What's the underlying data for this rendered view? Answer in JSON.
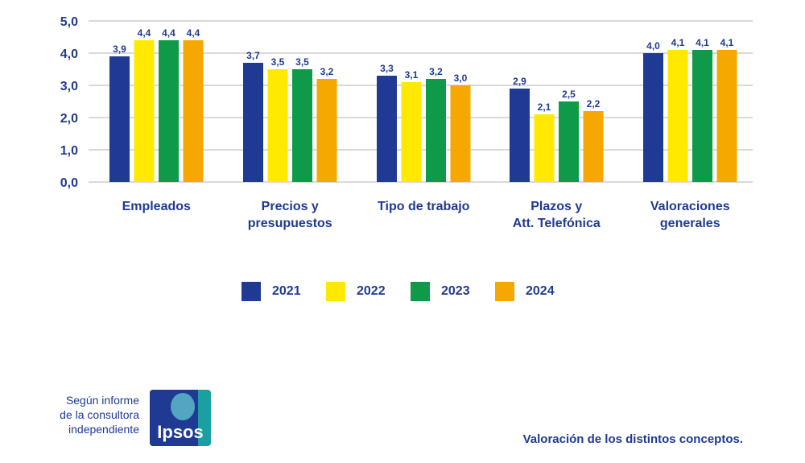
{
  "chart_data": {
    "type": "bar",
    "categories": [
      [
        "Empleados"
      ],
      [
        "Precios y",
        "presupuestos"
      ],
      [
        "Tipo de trabajo"
      ],
      [
        "Plazos y",
        "Att. Telefónica"
      ],
      [
        "Valoraciones",
        "generales"
      ]
    ],
    "series": [
      {
        "name": "2021",
        "color": "#1f3a93",
        "values": [
          3.9,
          3.7,
          3.3,
          2.9,
          4.0
        ],
        "labels": [
          "3,9",
          "3,7",
          "3,3",
          "2,9",
          "4,0"
        ]
      },
      {
        "name": "2022",
        "color": "#ffe900",
        "values": [
          4.4,
          3.5,
          3.1,
          2.1,
          4.1
        ],
        "labels": [
          "4,4",
          "3,5",
          "3,1",
          "2,1",
          "4,1"
        ]
      },
      {
        "name": "2023",
        "color": "#0e9a48",
        "values": [
          4.4,
          3.5,
          3.2,
          2.5,
          4.1
        ],
        "labels": [
          "4,4",
          "3,5",
          "3,2",
          "2,5",
          "4,1"
        ]
      },
      {
        "name": "2024",
        "color": "#f5a800",
        "values": [
          4.4,
          3.2,
          3.0,
          2.2,
          4.1
        ],
        "labels": [
          "4,4",
          "3,2",
          "3,0",
          "2,2",
          "4,1"
        ]
      }
    ],
    "ylim": [
      0,
      5
    ],
    "yticks": [
      0,
      1,
      2,
      3,
      4,
      5
    ],
    "ytick_labels": [
      "0,0",
      "1,0",
      "2,0",
      "3,0",
      "4,0",
      "5,0"
    ],
    "grid": true,
    "legend_position": "bottom",
    "title": "",
    "xlabel": "",
    "ylabel": ""
  },
  "footer": {
    "source_lines": [
      "Según informe",
      "de la consultora",
      "independiente"
    ],
    "logo_text": "Ipsos",
    "caption": "Valoración de los distintos conceptos."
  }
}
